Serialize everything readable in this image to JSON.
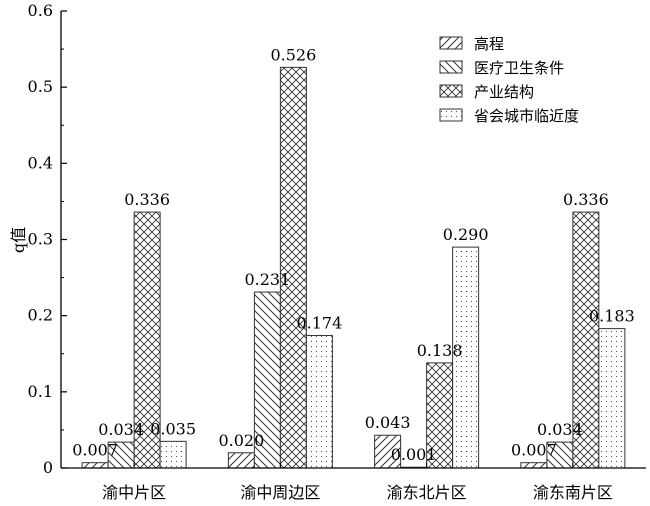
{
  "chart_data": {
    "type": "bar",
    "title": "",
    "xlabel": "",
    "ylabel": "q值",
    "ylim": [
      0,
      0.6
    ],
    "yticks": [
      "0",
      "0.1",
      "0.2",
      "0.3",
      "0.4",
      "0.5",
      "0.6"
    ],
    "categories": [
      "渝中片区",
      "渝中周边区",
      "渝东北片区",
      "渝东南片区"
    ],
    "series": [
      {
        "name": "高程",
        "pattern": "diagonal-up",
        "values": [
          0.007,
          0.02,
          0.043,
          0.007
        ],
        "labels": [
          "0.007",
          "0.020",
          "0.043",
          "0.007"
        ]
      },
      {
        "name": "医疗卫生条件",
        "pattern": "diagonal-down",
        "values": [
          0.034,
          0.231,
          0.001,
          0.034
        ],
        "labels": [
          "0.034",
          "0.231",
          "0.001",
          "0.034"
        ]
      },
      {
        "name": "产业结构",
        "pattern": "crosshatch",
        "values": [
          0.336,
          0.526,
          0.138,
          0.336
        ],
        "labels": [
          "0.336",
          "0.526",
          "0.138",
          "0.336"
        ]
      },
      {
        "name": "省会城市临近度",
        "pattern": "dots",
        "values": [
          0.035,
          0.174,
          0.29,
          0.183
        ],
        "labels": [
          "0.035",
          "0.174",
          "0.290",
          "0.183"
        ]
      }
    ],
    "legend_position": "top-right",
    "grid": false,
    "bar_color": "#ffffff",
    "stroke_color": "#333333"
  }
}
